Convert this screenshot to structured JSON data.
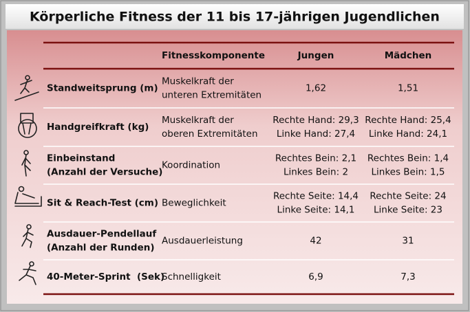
{
  "title": "Körperliche Fitness der 11 bis 17-jährigen Jugendlichen",
  "table": {
    "header": [
      "Fitnesskomponente",
      "Jungen",
      "Mädchen"
    ],
    "rows": [
      {
        "test": [
          "Standweitsprung (m)"
        ],
        "component": [
          "Muskelkraft der",
          "unteren Extremitäten"
        ],
        "boys": [
          "1,62"
        ],
        "girls": [
          "1,51"
        ]
      },
      {
        "test": [
          "Handgreifkraft (kg)"
        ],
        "component": [
          "Muskelkraft der",
          "oberen Extremitäten"
        ],
        "boys": [
          "Rechte Hand: 29,3",
          "Linke Hand: 27,4"
        ],
        "girls": [
          "Rechte Hand: 25,4",
          "Linke Hand: 24,1"
        ]
      },
      {
        "test": [
          "Einbeinstand",
          "(Anzahl der Versuche)"
        ],
        "component": [
          "Koordination"
        ],
        "boys": [
          "Rechtes Bein: 2,1",
          "Linkes Bein: 2"
        ],
        "girls": [
          "Rechtes Bein: 1,4",
          "Linkes Bein: 1,5"
        ]
      },
      {
        "test": [
          "Sit & Reach-Test (cm)"
        ],
        "component": [
          "Beweglichkeit"
        ],
        "boys": [
          "Rechte Seite: 14,4",
          "Linke Seite: 14,1"
        ],
        "girls": [
          "Rechte Seite: 24",
          "Linke Seite: 23"
        ]
      },
      {
        "test": [
          "Ausdauer-Pendellauf",
          "(Anzahl der Runden)"
        ],
        "component": [
          "Ausdauerleistung"
        ],
        "boys": [
          "42"
        ],
        "girls": [
          "31"
        ]
      },
      {
        "test": [
          "40-Meter-Sprint  (Sek)"
        ],
        "component": [
          "Schnelligkeit"
        ],
        "boys": [
          "6,9"
        ],
        "girls": [
          "7,3"
        ]
      }
    ]
  }
}
